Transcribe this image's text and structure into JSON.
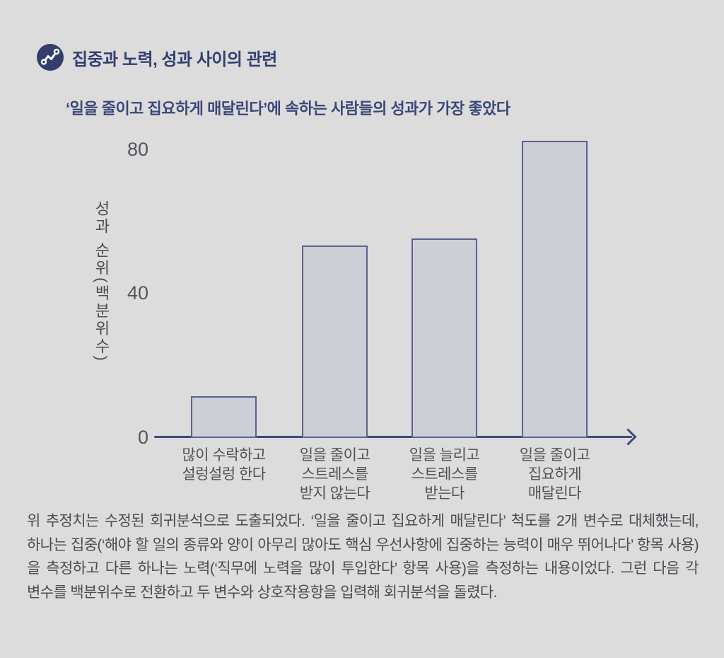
{
  "header": {
    "title": "집중과 노력, 성과 사이의 관련",
    "icon": "trend-line-chart-icon"
  },
  "subtitle": "‘일을 줄이고 집요하게 매달린다’에 속하는 사람들의 성과가 가장 좋았다",
  "chart_data": {
    "type": "bar",
    "categories": [
      [
        "많이 수락하고",
        "설렁설렁 한다"
      ],
      [
        "일을 줄이고",
        "스트레스를",
        "받지 않는다"
      ],
      [
        "일을 늘리고",
        "스트레스를",
        "받는다"
      ],
      [
        "일을 줄이고",
        "집요하게",
        "매달린다"
      ]
    ],
    "values": [
      11,
      53,
      55,
      82
    ],
    "title": "",
    "xlabel": "",
    "ylabel": "성과 순위(백분위수)",
    "yticks": [
      0,
      40,
      80
    ],
    "ylim": [
      0,
      84
    ],
    "grid": false,
    "legend": "none",
    "bar_fill": "#cdced6",
    "bar_border": "#59628f",
    "axis_color": "#3e4a7c"
  },
  "footnote": "위 추정치는 수정된 회귀분석으로 도출되었다. ‘일을 줄이고 집요하게 매달린다’ 척도를 2개 변수로 대체했는데, 하나는 집중(‘해야 할 일의 종류와 양이 아무리 많아도 핵심 우선사항에 집중하는 능력이 매우 뛰어나다’ 항목 사용)을 측정하고 다른 하나는 노력(‘직무에 노력을 많이 투입한다’ 항목 사용)을 측정하는 내용이었다. 그런 다음 각 변수를 백분위수로 전환하고 두 변수와 상호작용항을 입력해 회귀분석을 돌렸다.",
  "colors": {
    "navy": "#333e6f",
    "axis": "#3e4a7c",
    "bar-fill": "#cdced6",
    "bar-border": "#59628f",
    "text-dark": "#4b4c51",
    "text-gray": "#55565c",
    "bg": "#dcdcdd"
  }
}
